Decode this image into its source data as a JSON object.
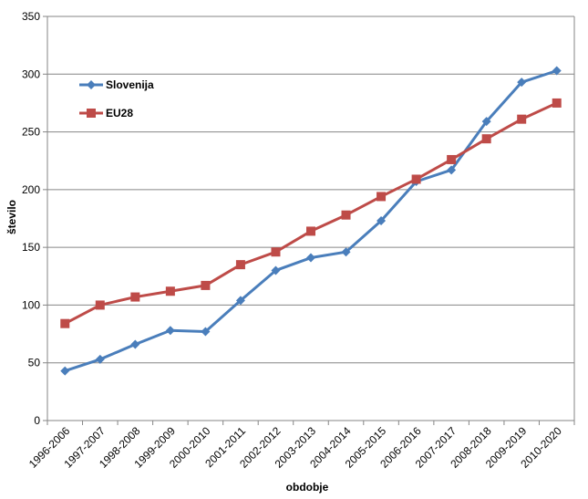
{
  "chart_data": {
    "type": "line",
    "title": "",
    "xlabel": "obdobje",
    "ylabel": "število",
    "ylim": [
      0,
      350
    ],
    "yticks": [
      0,
      50,
      100,
      150,
      200,
      250,
      300,
      350
    ],
    "grid": true,
    "legend_position": "top-left",
    "categories": [
      "1996-2006",
      "1997-2007",
      "1998-2008",
      "1999-2009",
      "2000-2010",
      "2001-2011",
      "2002-2012",
      "2003-2013",
      "2004-2014",
      "2005-2015",
      "2006-2016",
      "2007-2017",
      "2008-2018",
      "2009-2019",
      "2010-2020"
    ],
    "series": [
      {
        "name": "Slovenija",
        "color": "#4a7ebb",
        "marker": "diamond",
        "values": [
          43,
          53,
          66,
          78,
          77,
          104,
          130,
          141,
          146,
          173,
          207,
          217,
          259,
          293,
          303
        ]
      },
      {
        "name": "EU28",
        "color": "#be4b48",
        "marker": "square",
        "values": [
          84,
          100,
          107,
          112,
          117,
          135,
          146,
          164,
          178,
          194,
          209,
          226,
          244,
          261,
          275
        ]
      }
    ]
  }
}
